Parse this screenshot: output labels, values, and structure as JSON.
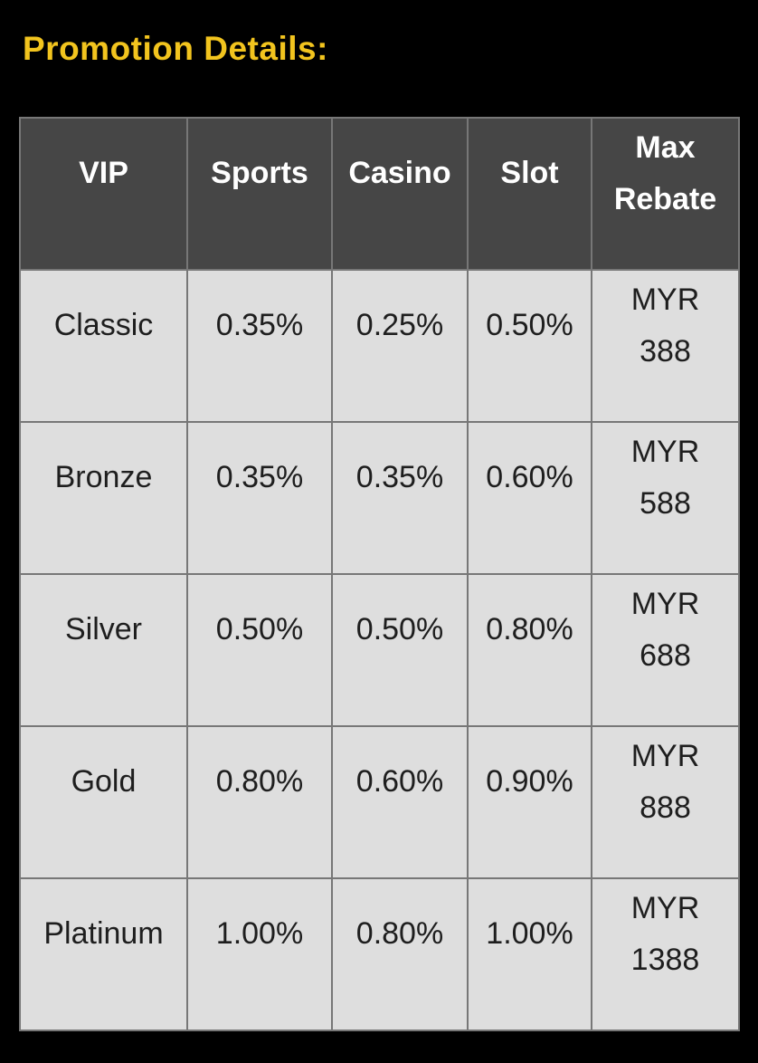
{
  "page": {
    "heading": "Promotion Details:"
  },
  "colors": {
    "page_background": "#000000",
    "heading_text": "#F2C41E",
    "table_header_background": "#464646",
    "table_header_text": "#FFFFFF",
    "table_cell_background": "#DEDEDE",
    "table_cell_text": "#1E1E1E",
    "table_border": "#777777"
  },
  "table": {
    "columns": [
      "VIP",
      "Sports",
      "Casino",
      "Slot",
      "Max Rebate"
    ],
    "rows": [
      {
        "vip": "Classic",
        "sports": "0.35%",
        "casino": "0.25%",
        "slot": "0.50%",
        "max_rebate": "MYR 388"
      },
      {
        "vip": "Bronze",
        "sports": "0.35%",
        "casino": "0.35%",
        "slot": "0.60%",
        "max_rebate": "MYR 588"
      },
      {
        "vip": "Silver",
        "sports": "0.50%",
        "casino": "0.50%",
        "slot": "0.80%",
        "max_rebate": "MYR 688"
      },
      {
        "vip": "Gold",
        "sports": "0.80%",
        "casino": "0.60%",
        "slot": "0.90%",
        "max_rebate": "MYR 888"
      },
      {
        "vip": "Platinum",
        "sports": "1.00%",
        "casino": "0.80%",
        "slot": "1.00%",
        "max_rebate": "MYR 1388"
      }
    ]
  }
}
